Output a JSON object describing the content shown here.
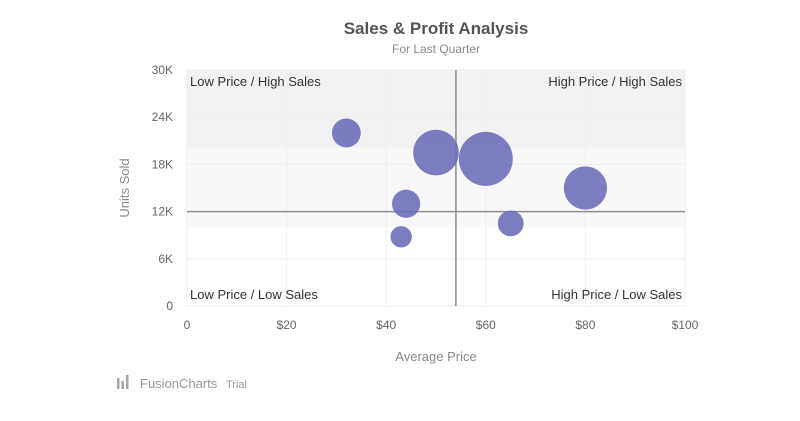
{
  "chart_data": {
    "type": "bubble",
    "title": "Sales & Profit Analysis",
    "subtitle": "For Last Quarter",
    "xlabel": "Average Price",
    "ylabel": "Units Sold",
    "xlim": [
      0,
      100
    ],
    "ylim": [
      0,
      30000
    ],
    "x_ticks": [
      0,
      20,
      40,
      60,
      80,
      100
    ],
    "x_tick_labels": [
      "0",
      "$20",
      "$40",
      "$60",
      "$80",
      "$100"
    ],
    "y_ticks": [
      0,
      6000,
      12000,
      18000,
      24000,
      30000
    ],
    "y_tick_labels": [
      "0",
      "6K",
      "12K",
      "18K",
      "24K",
      "30K"
    ],
    "vertical_trendline_x": 54,
    "horizontal_trendline_y": 12000,
    "horizontal_bands": [
      {
        "from": 20000,
        "to": 30000,
        "color": "#f2f2f2"
      },
      {
        "from": 10000,
        "to": 20000,
        "color": "#f8f8f8"
      }
    ],
    "bubble_color": "#6a6ab8",
    "points": [
      {
        "x": 32,
        "y": 22000,
        "z": 4
      },
      {
        "x": 50,
        "y": 19500,
        "z": 10
      },
      {
        "x": 60,
        "y": 18700,
        "z": 14
      },
      {
        "x": 44,
        "y": 13000,
        "z": 3.8
      },
      {
        "x": 80,
        "y": 15000,
        "z": 9
      },
      {
        "x": 65,
        "y": 10500,
        "z": 3.2
      },
      {
        "x": 43,
        "y": 8800,
        "z": 2.2
      }
    ],
    "quadrant_labels": {
      "top_left": "Low Price / High Sales",
      "top_right": "High Price / High Sales",
      "bottom_left": "Low Price / Low Sales",
      "bottom_right": "High Price / Low Sales"
    },
    "grid": true
  },
  "branding": {
    "name": "FusionCharts",
    "suffix": "Trial"
  }
}
